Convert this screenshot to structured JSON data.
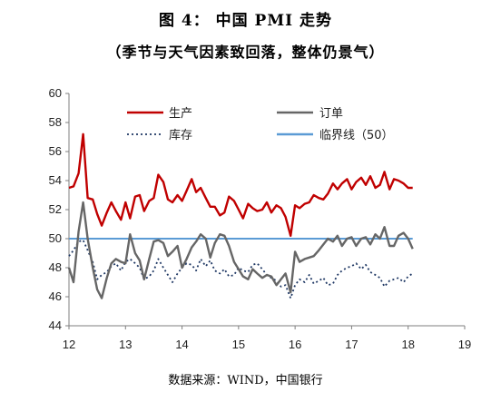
{
  "header": {
    "title": "图 4：   中国 PMI 走势",
    "subtitle": "（季节与天气因素致回落，整体仍景气）"
  },
  "source": "数据来源：WIND，中国银行",
  "chart_data": {
    "type": "line",
    "title": "",
    "xlabel": "",
    "ylabel": "",
    "xlim": [
      12,
      19
    ],
    "ylim": [
      44,
      60
    ],
    "x_ticks": [
      "12",
      "13",
      "14",
      "15",
      "16",
      "17",
      "18",
      "19"
    ],
    "y_ticks": [
      "44",
      "46",
      "48",
      "50",
      "52",
      "54",
      "56",
      "58",
      "60"
    ],
    "grid": false,
    "legend_position": "top",
    "x": [
      12.0,
      12.08,
      12.17,
      12.25,
      12.33,
      12.42,
      12.5,
      12.58,
      12.67,
      12.75,
      12.83,
      12.92,
      13.0,
      13.08,
      13.17,
      13.25,
      13.33,
      13.42,
      13.5,
      13.58,
      13.67,
      13.75,
      13.83,
      13.92,
      14.0,
      14.08,
      14.17,
      14.25,
      14.33,
      14.42,
      14.5,
      14.58,
      14.67,
      14.75,
      14.83,
      14.92,
      15.0,
      15.08,
      15.17,
      15.25,
      15.33,
      15.42,
      15.5,
      15.58,
      15.67,
      15.75,
      15.83,
      15.92,
      16.0,
      16.08,
      16.17,
      16.25,
      16.33,
      16.42,
      16.5,
      16.58,
      16.67,
      16.75,
      16.83,
      16.92,
      17.0,
      17.08,
      17.17,
      17.25,
      17.33,
      17.42,
      17.5,
      17.58,
      17.67,
      17.75,
      17.83,
      17.92,
      18.0,
      18.08
    ],
    "series": [
      {
        "name": "生产",
        "color": "#c00000",
        "values": [
          53.5,
          53.6,
          54.5,
          57.2,
          52.8,
          52.7,
          51.7,
          50.9,
          51.8,
          52.5,
          51.9,
          51.3,
          52.5,
          51.4,
          52.9,
          53.0,
          51.9,
          52.6,
          52.8,
          54.4,
          53.9,
          52.7,
          52.5,
          53.0,
          52.6,
          53.3,
          54.1,
          53.2,
          53.5,
          52.8,
          52.2,
          52.2,
          51.6,
          51.8,
          52.9,
          52.6,
          52.0,
          51.4,
          52.4,
          52.1,
          51.9,
          52.0,
          52.5,
          51.8,
          52.3,
          52.1,
          51.5,
          50.2,
          52.3,
          52.1,
          52.4,
          52.5,
          53.0,
          52.8,
          52.7,
          53.1,
          53.8,
          53.4,
          53.8,
          54.1,
          53.4,
          53.9,
          54.2,
          53.7,
          54.3,
          53.5,
          53.7,
          54.6,
          53.4,
          54.1,
          54.0,
          53.8,
          53.5,
          53.5
        ],
        "label_key": "生产"
      },
      {
        "name": "订单",
        "color": "#666666",
        "values": [
          48.0,
          47.0,
          50.5,
          52.5,
          50.0,
          48.0,
          46.5,
          45.9,
          47.3,
          48.3,
          48.6,
          48.4,
          48.3,
          50.3,
          49.0,
          48.5,
          47.2,
          48.6,
          49.8,
          49.9,
          49.7,
          48.8,
          49.1,
          49.5,
          48.0,
          48.6,
          49.4,
          49.8,
          50.3,
          50.0,
          48.7,
          49.7,
          50.3,
          50.2,
          49.5,
          48.4,
          47.9,
          47.4,
          47.2,
          47.9,
          47.6,
          47.3,
          47.5,
          47.4,
          46.8,
          47.2,
          47.6,
          46.3,
          49.1,
          48.4,
          48.6,
          48.7,
          48.8,
          49.2,
          49.6,
          50.0,
          49.8,
          50.2,
          49.5,
          50.0,
          50.1,
          49.5,
          50.0,
          50.1,
          49.6,
          50.3,
          50.0,
          50.8,
          49.5,
          49.5,
          50.2,
          50.4,
          50.0,
          49.3
        ]
      },
      {
        "name": "库存",
        "color": "#1f3864",
        "dash": "2,3",
        "values": [
          48.8,
          49.2,
          49.8,
          49.9,
          49.2,
          48.4,
          47.2,
          47.5,
          47.7,
          48.1,
          48.3,
          47.8,
          48.4,
          48.6,
          48.3,
          48.0,
          47.2,
          47.4,
          47.8,
          48.6,
          48.0,
          47.5,
          47.0,
          47.6,
          48.0,
          48.3,
          48.2,
          47.8,
          48.6,
          48.1,
          48.5,
          47.8,
          47.6,
          47.9,
          47.4,
          47.5,
          48.0,
          47.8,
          47.7,
          48.2,
          48.3,
          47.9,
          47.5,
          47.3,
          47.1,
          46.7,
          46.8,
          45.9,
          46.8,
          47.2,
          47.0,
          47.5,
          46.9,
          47.1,
          47.3,
          46.8,
          46.9,
          47.5,
          47.8,
          48.0,
          48.1,
          48.3,
          47.9,
          48.2,
          47.7,
          47.5,
          47.3,
          46.7,
          47.1,
          47.2,
          47.3,
          47.0,
          47.4,
          47.6
        ]
      },
      {
        "name": "临界线（50）",
        "color": "#5b9bd5",
        "values": [
          50,
          50,
          50,
          50,
          50,
          50,
          50,
          50,
          50,
          50,
          50,
          50,
          50,
          50,
          50,
          50,
          50,
          50,
          50,
          50,
          50,
          50,
          50,
          50,
          50,
          50,
          50,
          50,
          50,
          50,
          50,
          50,
          50,
          50,
          50,
          50,
          50,
          50,
          50,
          50,
          50,
          50,
          50,
          50,
          50,
          50,
          50,
          50,
          50,
          50,
          50,
          50,
          50,
          50,
          50,
          50,
          50,
          50,
          50,
          50,
          50,
          50,
          50,
          50,
          50,
          50,
          50,
          50,
          50,
          50,
          50,
          50,
          50,
          50
        ]
      }
    ]
  }
}
